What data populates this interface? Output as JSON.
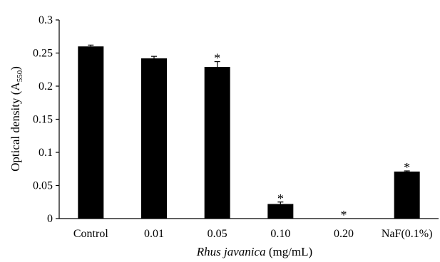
{
  "chart_data": {
    "type": "bar",
    "categories": [
      "Control",
      "0.01",
      "0.05",
      "0.10",
      "0.20",
      "NaF(0.1%)"
    ],
    "values": [
      0.26,
      0.242,
      0.229,
      0.022,
      0.0,
      0.071
    ],
    "errors": [
      0.002,
      0.003,
      0.008,
      0.003,
      0.0,
      0.001
    ],
    "significance": [
      "",
      "",
      "*",
      "*",
      "*",
      "*"
    ],
    "ylabel": "Optical density",
    "ylabel_unit_base": "A",
    "ylabel_unit_sub": "550",
    "xlabel_italic": "Rhus javanica",
    "xlabel_unit": " (mg/mL)",
    "yticks": [
      "0",
      "0.05",
      "0.1",
      "0.15",
      "0.2",
      "0.25",
      "0.3"
    ],
    "ylim": [
      0,
      0.3
    ],
    "grid": false,
    "bar_color": "#000000"
  }
}
